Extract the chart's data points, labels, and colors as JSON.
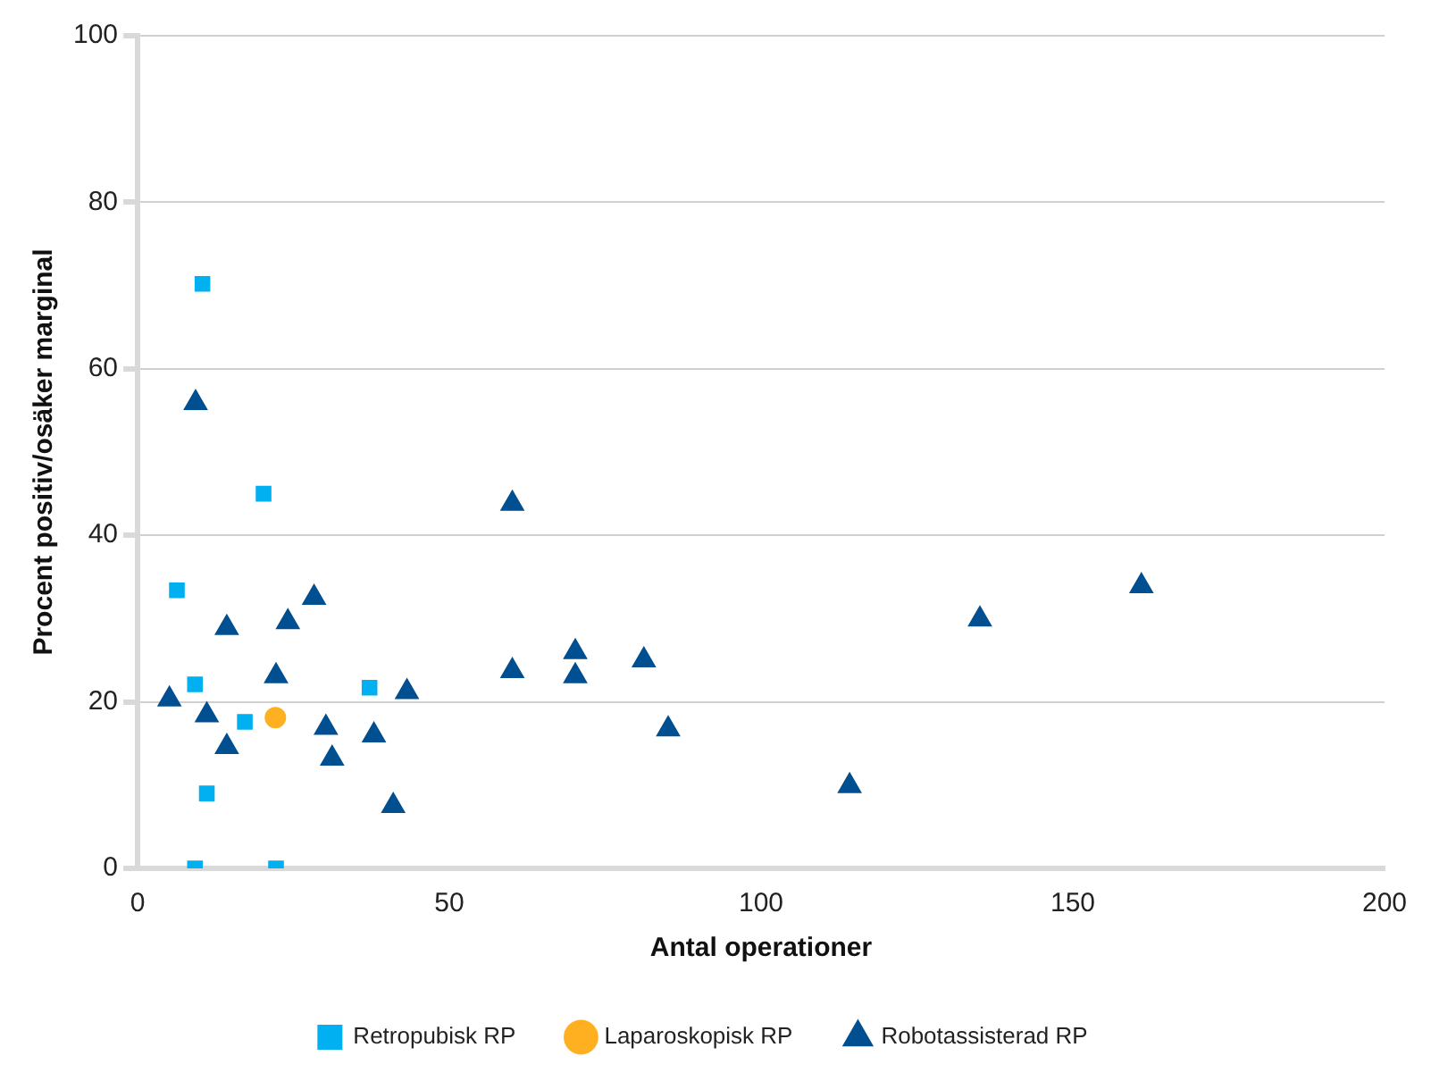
{
  "chart_data": {
    "type": "scatter",
    "xlabel": "Antal operationer",
    "ylabel": "Procent positiv/osäker marginal",
    "xlim": [
      0,
      200
    ],
    "xticks": [
      0,
      50,
      100,
      150,
      200
    ],
    "ylim": [
      0,
      100
    ],
    "yticks": [
      0,
      20,
      40,
      60,
      80,
      100
    ],
    "grid": "y",
    "legend": "bottom",
    "series": [
      {
        "name": "Retropubisk RP",
        "color": "#00b0f0",
        "marker": "square",
        "x": [
          10.4,
          20.2,
          6.3,
          9.2,
          17.2,
          37.2,
          11.1,
          9.2,
          22.2
        ],
        "values": [
          70.2,
          45,
          33.4,
          22.1,
          17.6,
          21.7,
          9.0,
          0,
          0
        ]
      },
      {
        "name": "Laparoskopisk RP",
        "color": "#ffb020",
        "marker": "circle",
        "x": [
          22.1
        ],
        "values": [
          18.1
        ]
      },
      {
        "name": "Robotassisterad RP",
        "color": "#004f91",
        "marker": "triangle",
        "x": [
          9.3,
          5.1,
          11.1,
          14.3,
          14.3,
          22.2,
          24.1,
          28.3,
          30.2,
          31.2,
          37.9,
          43.2,
          41.0,
          60.1,
          60.1,
          70.2,
          70.2,
          81.2,
          85.1,
          114.2,
          135.1,
          161.0
        ],
        "values": [
          55.9,
          20.3,
          18.4,
          28.9,
          14.6,
          23.1,
          29.6,
          32.5,
          16.9,
          13.2,
          16.0,
          21.2,
          7.5,
          43.8,
          23.7,
          26.0,
          23.1,
          25.0,
          16.7,
          9.9,
          29.9,
          33.9
        ]
      }
    ]
  }
}
